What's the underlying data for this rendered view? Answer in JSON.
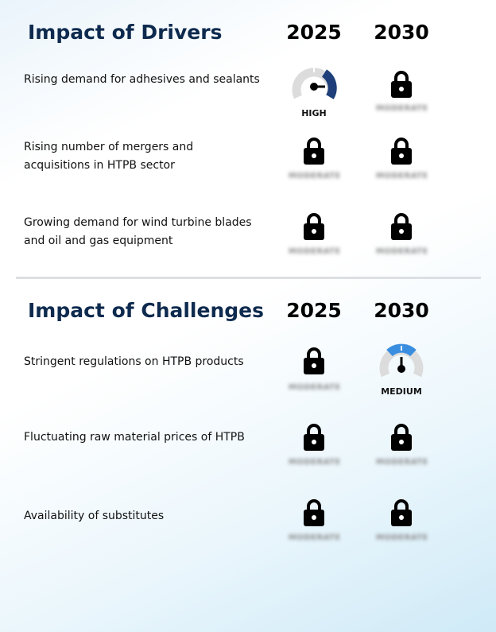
{
  "drivers": {
    "title": "Impact of Drivers",
    "year1": "2025",
    "year2": "2030",
    "rows": [
      {
        "label": "Rising demand for adhesives and sealants",
        "v2025": "HIGH",
        "v2030": "MODERATE"
      },
      {
        "label": "Rising number of mergers and acquisitions in HTPB sector",
        "v2025": "MODERATE",
        "v2030": "MODERATE"
      },
      {
        "label": "Growing demand for wind turbine blades and oil and gas equipment",
        "v2025": "MODERATE",
        "v2030": "MODERATE"
      }
    ]
  },
  "challenges": {
    "title": "Impact of Challenges",
    "year1": "2025",
    "year2": "2030",
    "rows": [
      {
        "label": "Stringent regulations on HTPB products",
        "v2025": "MODERATE",
        "v2030": "MEDIUM"
      },
      {
        "label": "Fluctuating raw material prices of HTPB",
        "v2025": "MODERATE",
        "v2030": "MODERATE"
      },
      {
        "label": "Availability of substitutes",
        "v2025": "MODERATE",
        "v2030": "MODERATE"
      }
    ]
  },
  "colors": {
    "title": "#0e2a4e",
    "high": "#1e3f7a",
    "medium": "#3a8ee0",
    "gauge_track": "#dcdcdc"
  }
}
